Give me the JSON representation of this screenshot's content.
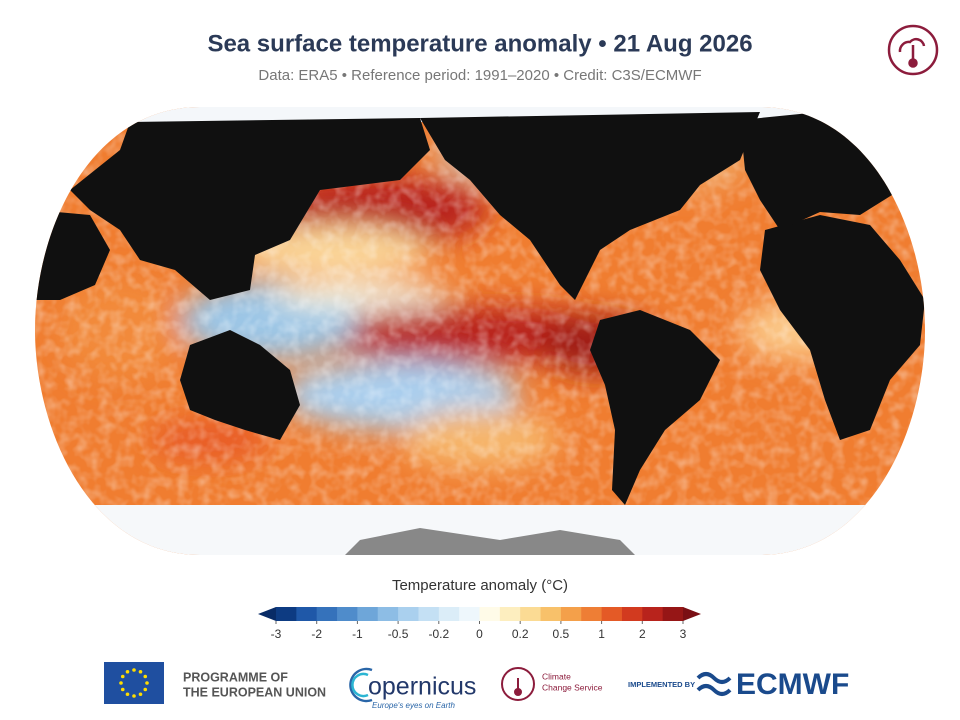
{
  "header": {
    "title": "Sea surface temperature anomaly • 21 Aug 2026",
    "subtitle": "Data: ERA5 • Reference period: 1991–2020 • Credit: C3S/ECMWF"
  },
  "colorbar": {
    "label": "Temperature anomaly (°C)",
    "ticks": [
      -3,
      -2,
      -1,
      -0.5,
      -0.2,
      0,
      0.2,
      0.5,
      1,
      2,
      3
    ],
    "colors": [
      "#0d3b82",
      "#1f58a8",
      "#3572bb",
      "#4f8ccb",
      "#6ea6d9",
      "#8dbde5",
      "#aad0ee",
      "#c4e0f4",
      "#dbedf8",
      "#eef7fc",
      "#fffbe8",
      "#fdeebf",
      "#fbdb94",
      "#f8c16a",
      "#f4a04a",
      "#ee7e35",
      "#e45a26",
      "#d23a1f",
      "#b8231c",
      "#961616"
    ],
    "extend_colors": [
      "#082b66",
      "#7a0f14"
    ]
  },
  "footer": {
    "eu_line1": "PROGRAMME OF",
    "eu_line2": "THE EUROPEAN UNION",
    "copernicus": "opernicus",
    "copernicus_tagline": "Europe's eyes on Earth",
    "c3s_line1": "Climate",
    "c3s_line2": "Change Service",
    "implemented_by": "IMPLEMENTED BY",
    "ecmwf": "ECMWF"
  }
}
